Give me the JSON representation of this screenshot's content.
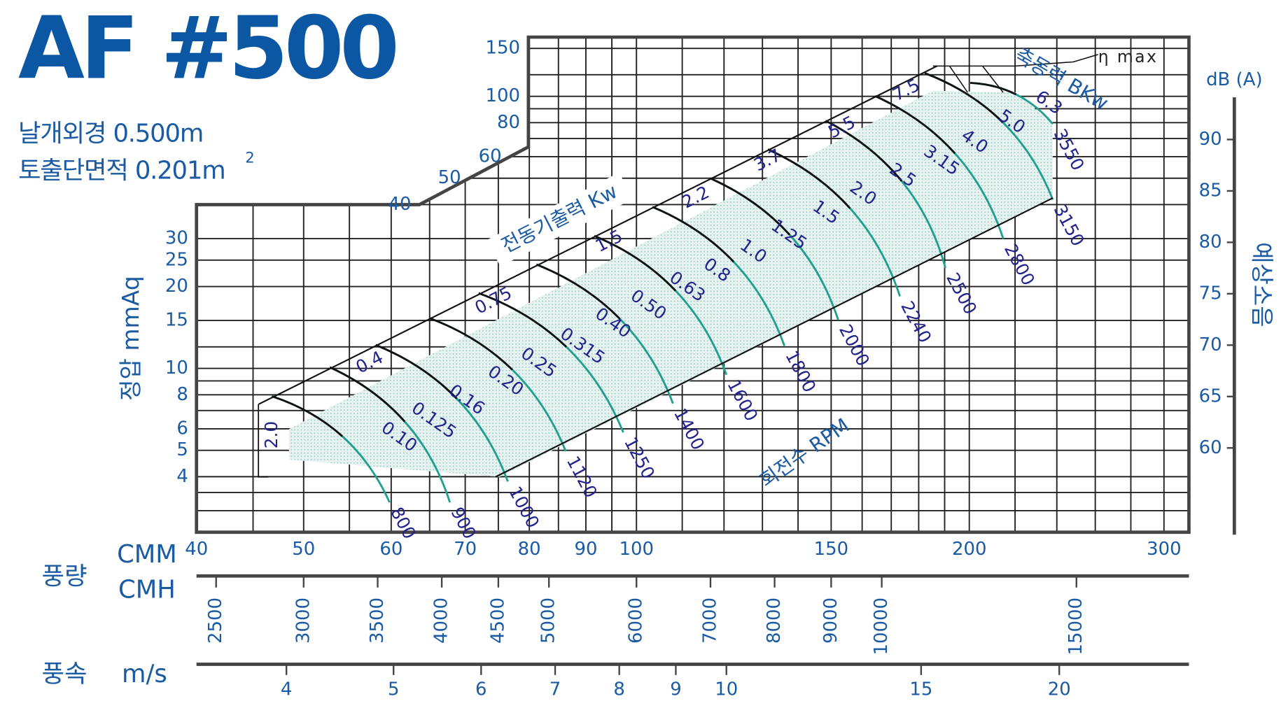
{
  "chart_data": {
    "type": "fan-performance",
    "title": "AF #500",
    "specs": [
      "날개외경 0.500m",
      "토출단면적 0.201m"
    ],
    "specs_superscript": "2",
    "log_scale": true,
    "grid": true,
    "flow_label": "풍량",
    "x_label": "CMM",
    "xlim": [
      40,
      316
    ],
    "xticks": [
      40,
      50,
      60,
      70,
      80,
      90,
      100,
      150,
      200,
      300
    ],
    "xgrid_minor": [
      45,
      55,
      65,
      75,
      85,
      95,
      110,
      120,
      130,
      140,
      160,
      170,
      180,
      190,
      220,
      240,
      260,
      280
    ],
    "y_label": "정압 mmAq",
    "ylim": [
      2.5,
      165
    ],
    "yticks": [
      4,
      5,
      6,
      8,
      10,
      15,
      20,
      25,
      30,
      40,
      50,
      60,
      80,
      100,
      150
    ],
    "ygrid_minor": [
      3,
      3.5,
      7,
      9,
      12,
      70,
      90,
      120
    ],
    "cmh_axis": {
      "label": "CMH",
      "lim": [
        2400,
        18960
      ],
      "ticks": [
        2500,
        3000,
        3500,
        4000,
        4500,
        5000,
        6000,
        7000,
        8000,
        9000,
        10000,
        15000
      ]
    },
    "velocity_axis": {
      "group_label": "풍속",
      "label": "m/s",
      "lim": [
        3.317,
        26.2
      ],
      "ticks": [
        4,
        5,
        6,
        7,
        8,
        9,
        10,
        15,
        20
      ]
    },
    "y2_label": "dB (A)",
    "y2_title": "예상소음",
    "y2lim": [
      51.8,
      94.1
    ],
    "y2ticks": [
      60,
      65,
      70,
      75,
      80,
      85,
      90
    ],
    "rpm_label": "회전수 RPM",
    "series": [
      {
        "name": "800",
        "color": "#1fa08e",
        "x": [
          46.8,
          59.8
        ],
        "values": [
          7.9,
          3.22
        ]
      },
      {
        "name": "900",
        "color": "#1fa08e",
        "x": [
          52.8,
          67.8
        ],
        "values": [
          10.1,
          3.22
        ]
      },
      {
        "name": "1000",
        "color": "#1fa08e",
        "x": [
          58.1,
          76.5
        ],
        "values": [
          12.2,
          3.84
        ]
      },
      {
        "name": "1120",
        "color": "#1fa08e",
        "x": [
          65.0,
          86.3
        ],
        "values": [
          15.3,
          4.96
        ]
      },
      {
        "name": "1250",
        "color": "#1fa08e",
        "x": [
          72.0,
          97.3
        ],
        "values": [
          18.9,
          5.82
        ]
      },
      {
        "name": "1400",
        "color": "#1fa08e",
        "x": [
          81.2,
          107.9
        ],
        "values": [
          24.1,
          7.43
        ]
      },
      {
        "name": "1600",
        "color": "#1fa08e",
        "x": [
          91.6,
          120.6
        ],
        "values": [
          30.7,
          9.48
        ]
      },
      {
        "name": "1800",
        "color": "#1fa08e",
        "x": [
          103.4,
          136.1
        ],
        "values": [
          39.2,
          12.1
        ]
      },
      {
        "name": "2000",
        "color": "#1fa08e",
        "x": [
          116.6,
          152.2
        ],
        "values": [
          50.0,
          15.1
        ]
      },
      {
        "name": "2240",
        "color": "#1fa08e",
        "x": [
          131.5,
          173.1
        ],
        "values": [
          63.8,
          18.4
        ]
      },
      {
        "name": "2500",
        "color": "#1fa08e",
        "x": [
          148.3,
          190.3
        ],
        "values": [
          81.3,
          23.4
        ]
      },
      {
        "name": "2800",
        "color": "#1fa08e",
        "x": [
          164.4,
          214.7
        ],
        "values": [
          100.2,
          29.9
        ]
      },
      {
        "name": "3150",
        "color": "#1fa08e",
        "x": [
          182.3,
          238.0
        ],
        "values": [
          121.7,
          41.7
        ]
      },
      {
        "name": "3550",
        "color": "#1fa08e",
        "x": [
          200.4,
          238.0
        ],
        "values": [
          112.0,
          79.1
        ]
      }
    ],
    "shaft_power_label": "축동력 BKw",
    "shaft_power_labels": [
      "0.10",
      "0.125",
      "0.16",
      "0.20",
      "0.25",
      "0.315",
      "0.40",
      "0.50",
      "0.63",
      "0.8",
      "1.0",
      "1.25",
      "1.5",
      "2.0",
      "2.5",
      "3.15",
      "4.0",
      "5.0",
      "6.3"
    ],
    "motor_power_label": "전동기출력 Kw",
    "motor_power_labels": [
      "2.0",
      "0.4",
      "0.75",
      "1.5",
      "2.2",
      "3.7",
      "5.5",
      "7.5"
    ],
    "eta_label": "η max"
  }
}
